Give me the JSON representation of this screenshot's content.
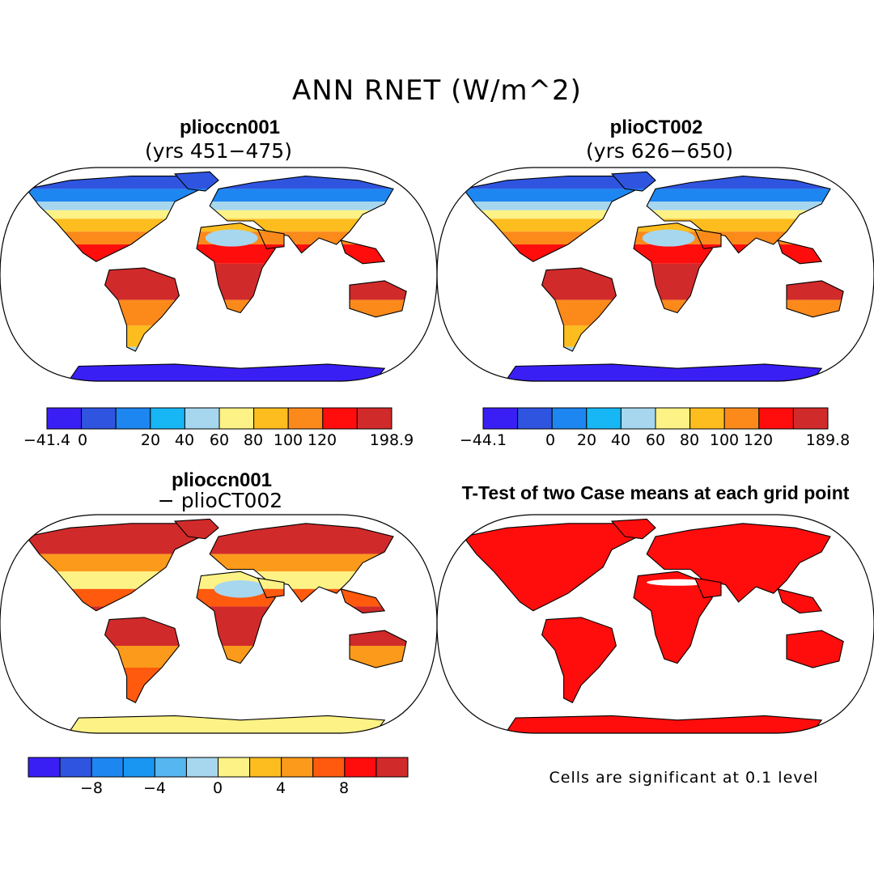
{
  "figure": {
    "title": "ANN RNET (W/m^2)",
    "note": "Cells are significant at 0.1 level"
  },
  "chart_data": [
    {
      "type": "heatmap",
      "title": "plioccn001",
      "subtitle": "(yrs 451−475)",
      "description": "Annual mean net surface radiation map (Robinson projection)",
      "colorbar": {
        "colors": [
          "#3a1ff5",
          "#2f55e0",
          "#1e86f0",
          "#17b6f5",
          "#a6d7ee",
          "#fdf285",
          "#fdbd1f",
          "#fb8a1b",
          "#ff0d0d",
          "#d12a2a"
        ],
        "tick_labels": [
          "−41.4",
          "0",
          "20",
          "40",
          "60",
          "80",
          "100",
          "120",
          "198.9"
        ],
        "min": -41.4,
        "max": 198.9
      }
    },
    {
      "type": "heatmap",
      "title": "plioCT002",
      "subtitle": "(yrs 626−650)",
      "description": "Annual mean net surface radiation map (Robinson projection)",
      "colorbar": {
        "colors": [
          "#3a1ff5",
          "#2f55e0",
          "#1e86f0",
          "#17b6f5",
          "#a6d7ee",
          "#fdf285",
          "#fdbd1f",
          "#fb8a1b",
          "#ff0d0d",
          "#d12a2a"
        ],
        "tick_labels": [
          "−44.1",
          "0",
          "20",
          "40",
          "60",
          "80",
          "100",
          "120",
          "189.8"
        ],
        "min": -44.1,
        "max": 189.8
      }
    },
    {
      "type": "heatmap",
      "title": "plioccn001",
      "subtitle": "− plioCT002",
      "description": "Difference map",
      "colorbar": {
        "colors": [
          "#3a1ff5",
          "#2f55e0",
          "#1e86f0",
          "#1996f2",
          "#56b7f0",
          "#a6d7ee",
          "#fdf285",
          "#fdbd1f",
          "#fb9a1b",
          "#ff5a0d",
          "#ff0d0d",
          "#d12a2a"
        ],
        "tick_labels": [
          "−8",
          "−4",
          "0",
          "4",
          "8"
        ],
        "min": -12,
        "max": 12
      }
    },
    {
      "type": "heatmap",
      "title": "T-Test of two Case means at each grid point",
      "subtitle": "",
      "description": "Significance mask (red = significant)"
    }
  ]
}
